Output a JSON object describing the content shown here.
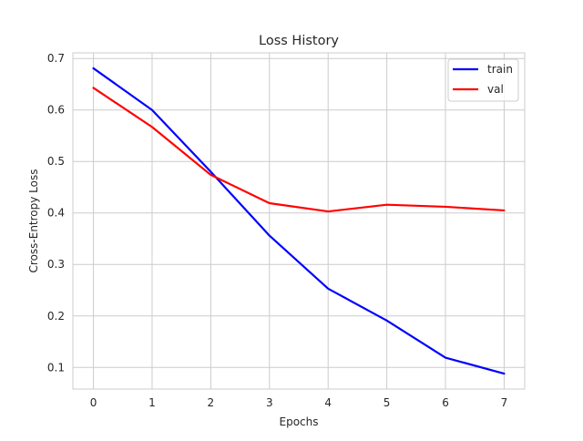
{
  "chart_data": {
    "type": "line",
    "title": "Loss History",
    "xlabel": "Epochs",
    "ylabel": "Cross-Entropy Loss",
    "x": [
      0,
      1,
      2,
      3,
      4,
      5,
      6,
      7
    ],
    "series": [
      {
        "name": "train",
        "color": "#0000ff",
        "values": [
          0.681,
          0.6,
          0.48,
          0.356,
          0.253,
          0.191,
          0.119,
          0.088
        ]
      },
      {
        "name": "val",
        "color": "#ff0000",
        "values": [
          0.643,
          0.567,
          0.474,
          0.419,
          0.403,
          0.416,
          0.412,
          0.405
        ]
      }
    ],
    "xlim": [
      -0.35,
      7.35
    ],
    "ylim": [
      0.058,
      0.711
    ],
    "xticks": [
      0,
      1,
      2,
      3,
      4,
      5,
      6,
      7
    ],
    "yticks": [
      0.1,
      0.2,
      0.3,
      0.4,
      0.5,
      0.6,
      0.7
    ],
    "grid": true,
    "legend_position": "top-right"
  }
}
